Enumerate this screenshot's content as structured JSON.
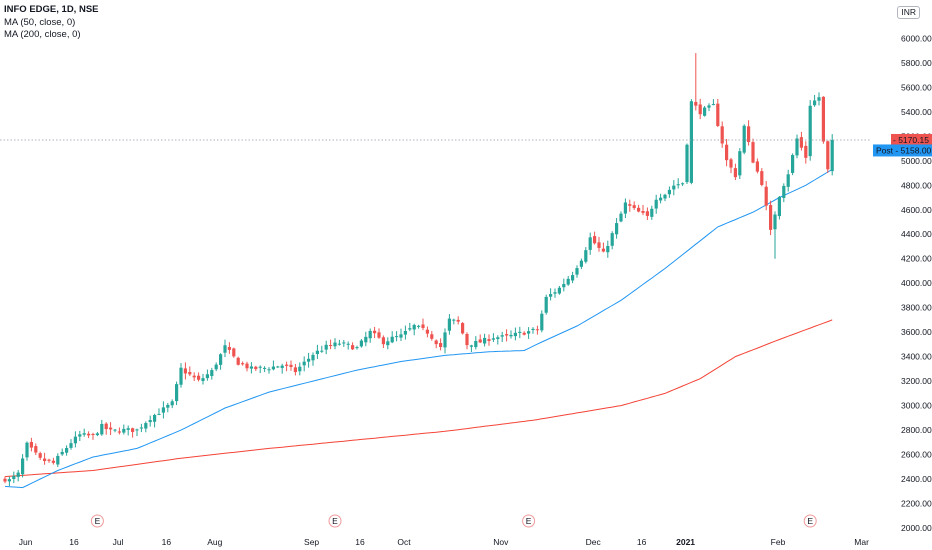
{
  "legend": {
    "symbol": "INFO EDGE, 1D, NSE",
    "ma50": "MA (50, close, 0)",
    "ma200": "MA (200, close, 0)"
  },
  "currency": "INR",
  "price_labels": {
    "last": "5170.15",
    "post_tag": "Post",
    "post_value": "5158.00"
  },
  "event_marker": "E",
  "colors": {
    "up": "#26a69a",
    "down": "#ef5350",
    "ma50": "#2196f3",
    "ma200": "#f44336",
    "post": "#2196f3"
  },
  "chart_data": {
    "type": "candlestick",
    "ylim": [
      2000,
      6200
    ],
    "yticks": [
      2000,
      2200,
      2400,
      2600,
      2800,
      3000,
      3200,
      3400,
      3600,
      3800,
      4000,
      4200,
      4400,
      4600,
      4800,
      5000,
      5200,
      5400,
      5600,
      5800,
      6000
    ],
    "xticks": [
      {
        "label": "Jun",
        "day": 4
      },
      {
        "label": "16",
        "day": 15
      },
      {
        "label": "Jul",
        "day": 25
      },
      {
        "label": "16",
        "day": 36
      },
      {
        "label": "Aug",
        "day": 47
      },
      {
        "label": "Sep",
        "day": 69
      },
      {
        "label": "16",
        "day": 80
      },
      {
        "label": "Oct",
        "day": 90
      },
      {
        "label": "Nov",
        "day": 112
      },
      {
        "label": "Dec",
        "day": 133
      },
      {
        "label": "16",
        "day": 144
      },
      {
        "label": "2021",
        "day": 154,
        "bold": true
      },
      {
        "label": "Feb",
        "day": 175
      },
      {
        "label": "Mar",
        "day": 194
      }
    ],
    "earnings_days": [
      21,
      75,
      119,
      183
    ],
    "total_days": 198,
    "last_index": 188,
    "close_anchors": [
      [
        0,
        2400
      ],
      [
        1,
        2390
      ],
      [
        3,
        2440
      ],
      [
        5,
        2680
      ],
      [
        8,
        2560
      ],
      [
        11,
        2530
      ],
      [
        15,
        2700
      ],
      [
        17,
        2760
      ],
      [
        20,
        2750
      ],
      [
        22,
        2830
      ],
      [
        24,
        2790
      ],
      [
        27,
        2800
      ],
      [
        30,
        2800
      ],
      [
        33,
        2900
      ],
      [
        36,
        2970
      ],
      [
        38,
        3020
      ],
      [
        40,
        3300
      ],
      [
        44,
        3200
      ],
      [
        47,
        3280
      ],
      [
        50,
        3480
      ],
      [
        53,
        3350
      ],
      [
        56,
        3300
      ],
      [
        60,
        3310
      ],
      [
        63,
        3330
      ],
      [
        66,
        3280
      ],
      [
        70,
        3420
      ],
      [
        73,
        3480
      ],
      [
        76,
        3510
      ],
      [
        80,
        3470
      ],
      [
        83,
        3600
      ],
      [
        86,
        3520
      ],
      [
        88,
        3550
      ],
      [
        90,
        3570
      ],
      [
        93,
        3650
      ],
      [
        96,
        3600
      ],
      [
        99,
        3480
      ],
      [
        101,
        3700
      ],
      [
        103,
        3680
      ],
      [
        105,
        3500
      ],
      [
        108,
        3520
      ],
      [
        111,
        3560
      ],
      [
        114,
        3560
      ],
      [
        117,
        3590
      ],
      [
        121,
        3620
      ],
      [
        123,
        3880
      ],
      [
        126,
        3960
      ],
      [
        129,
        4080
      ],
      [
        131,
        4200
      ],
      [
        133,
        4370
      ],
      [
        136,
        4240
      ],
      [
        139,
        4480
      ],
      [
        141,
        4650
      ],
      [
        143,
        4600
      ],
      [
        146,
        4540
      ],
      [
        148,
        4700
      ],
      [
        150,
        4730
      ],
      [
        152,
        4800
      ],
      [
        154,
        4820
      ],
      [
        156,
        5480
      ],
      [
        158,
        5400
      ],
      [
        161,
        5450
      ],
      [
        164,
        5000
      ],
      [
        166,
        4880
      ],
      [
        168,
        5280
      ],
      [
        170,
        5000
      ],
      [
        172,
        4820
      ],
      [
        174,
        4420
      ],
      [
        176,
        4720
      ],
      [
        178,
        4900
      ],
      [
        180,
        5180
      ],
      [
        182,
        5030
      ],
      [
        183,
        5460
      ],
      [
        185,
        5520
      ],
      [
        186,
        5150
      ],
      [
        187,
        4920
      ],
      [
        188,
        5170.15
      ]
    ],
    "ma50_anchors": [
      [
        0,
        2340
      ],
      [
        4,
        2330
      ],
      [
        12,
        2470
      ],
      [
        20,
        2580
      ],
      [
        30,
        2650
      ],
      [
        40,
        2800
      ],
      [
        50,
        2980
      ],
      [
        60,
        3110
      ],
      [
        70,
        3200
      ],
      [
        80,
        3290
      ],
      [
        90,
        3360
      ],
      [
        100,
        3410
      ],
      [
        110,
        3440
      ],
      [
        118,
        3450
      ],
      [
        122,
        3520
      ],
      [
        130,
        3650
      ],
      [
        140,
        3860
      ],
      [
        150,
        4120
      ],
      [
        156,
        4290
      ],
      [
        162,
        4460
      ],
      [
        170,
        4580
      ],
      [
        176,
        4700
      ],
      [
        182,
        4800
      ],
      [
        188,
        4930
      ]
    ],
    "ma200_anchors": [
      [
        0,
        2420
      ],
      [
        20,
        2470
      ],
      [
        40,
        2570
      ],
      [
        60,
        2650
      ],
      [
        80,
        2720
      ],
      [
        100,
        2790
      ],
      [
        120,
        2880
      ],
      [
        140,
        3000
      ],
      [
        150,
        3100
      ],
      [
        158,
        3220
      ],
      [
        166,
        3400
      ],
      [
        176,
        3540
      ],
      [
        188,
        3700
      ]
    ]
  }
}
